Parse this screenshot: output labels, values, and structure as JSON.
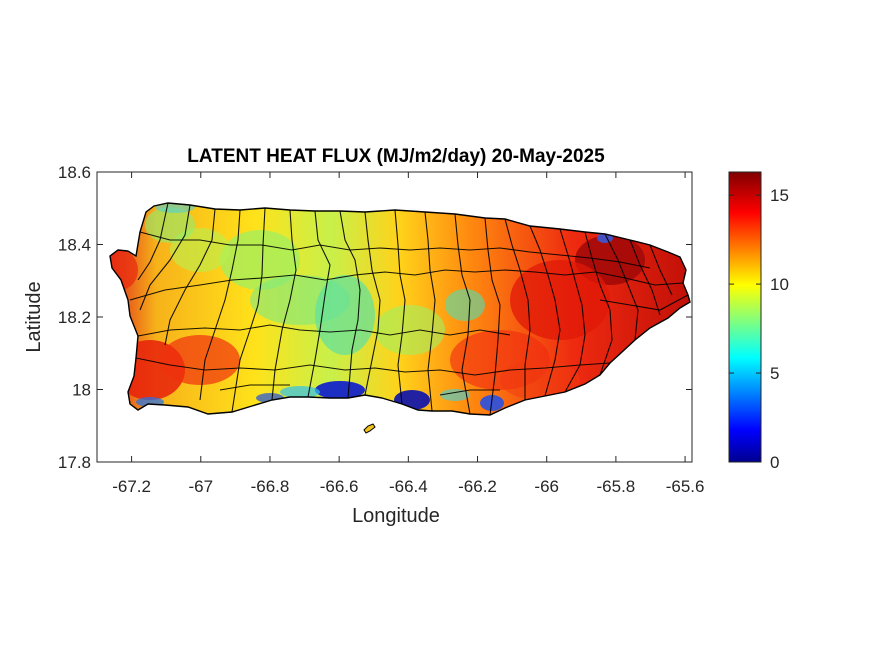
{
  "chart_data": {
    "type": "heatmap",
    "title": "LATENT HEAT FLUX (MJ/m2/day) 20-May-2025",
    "xlabel": "Longitude",
    "ylabel": "Latitude",
    "xlim": [
      -67.3,
      -65.58
    ],
    "ylim": [
      17.8,
      18.6
    ],
    "xticks": [
      -67.2,
      -67,
      -66.8,
      -66.6,
      -66.4,
      -66.2,
      -66,
      -65.8,
      -65.6
    ],
    "xtick_labels": [
      "-67.2",
      "-67",
      "-66.8",
      "-66.6",
      "-66.4",
      "-66.2",
      "-66",
      "-65.8",
      "-65.6"
    ],
    "yticks": [
      17.8,
      18,
      18.2,
      18.4,
      18.6
    ],
    "ytick_labels": [
      "17.8",
      "18",
      "18.2",
      "18.4",
      "18.6"
    ],
    "colorbar": {
      "colormap": "jet",
      "range": [
        0,
        16.3
      ],
      "ticks": [
        0,
        5,
        10,
        15
      ],
      "tick_labels": [
        "0",
        "5",
        "10",
        "15"
      ]
    },
    "colors": {
      "jet_stops": [
        "#00008f",
        "#0000ff",
        "#00ffff",
        "#ffff00",
        "#ff0000",
        "#800000"
      ],
      "boundary": "#000000"
    }
  }
}
